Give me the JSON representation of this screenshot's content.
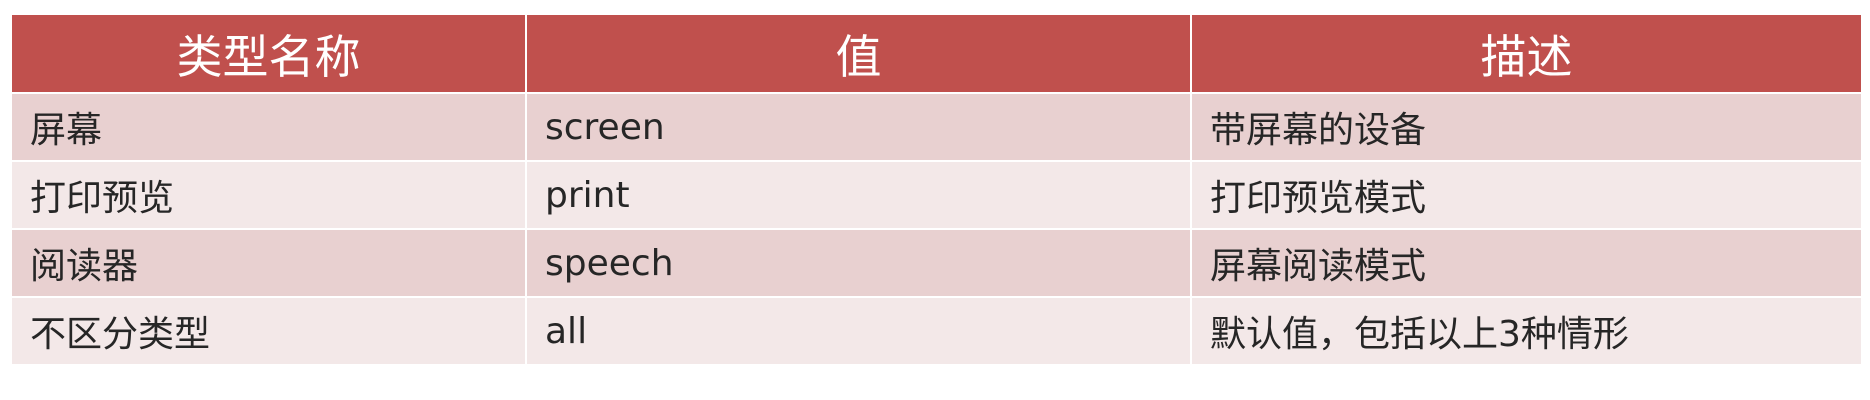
{
  "colors": {
    "header_bg": "#c0504d",
    "header_text": "#ffffff",
    "row_odd_bg": "#e8d0d0",
    "row_even_bg": "#f3e8e8",
    "cell_text": "#262626"
  },
  "table": {
    "headers": [
      "类型名称",
      "值",
      "描述"
    ],
    "rows": [
      [
        "屏幕",
        "screen",
        "带屏幕的设备"
      ],
      [
        "打印预览",
        "print",
        "打印预览模式"
      ],
      [
        "阅读器",
        "speech",
        "屏幕阅读模式"
      ],
      [
        "不区分类型",
        "all",
        "默认值，包括以上3种情形"
      ]
    ]
  }
}
